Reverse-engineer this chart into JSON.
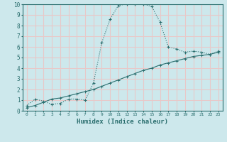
{
  "bg_color": "#cde8ec",
  "grid_color": "#e8c8c8",
  "line_color": "#2a6e6e",
  "xlabel": "Humidex (Indice chaleur)",
  "xlim": [
    -0.5,
    23.5
  ],
  "ylim": [
    0,
    10
  ],
  "xticks": [
    0,
    1,
    2,
    3,
    4,
    5,
    6,
    7,
    8,
    9,
    10,
    11,
    12,
    13,
    14,
    15,
    16,
    17,
    18,
    19,
    20,
    21,
    22,
    23
  ],
  "yticks": [
    0,
    1,
    2,
    3,
    4,
    5,
    6,
    7,
    8,
    9,
    10
  ],
  "curve1_x": [
    0,
    1,
    2,
    3,
    4,
    5,
    6,
    7,
    8,
    9,
    10,
    11,
    12,
    13,
    14,
    15,
    16,
    17,
    18,
    19,
    20,
    21,
    22,
    23
  ],
  "curve1_y": [
    0.5,
    1.1,
    0.9,
    0.6,
    0.7,
    1.1,
    1.1,
    1.0,
    2.6,
    6.4,
    8.6,
    9.9,
    10.0,
    10.0,
    10.0,
    9.8,
    8.3,
    6.0,
    5.8,
    5.5,
    5.6,
    5.5,
    5.3,
    5.6
  ],
  "curve2_x": [
    0,
    1,
    2,
    3,
    4,
    5,
    6,
    7,
    8,
    9,
    10,
    11,
    12,
    13,
    14,
    15,
    16,
    17,
    18,
    19,
    20,
    21,
    22,
    23
  ],
  "curve2_y": [
    0.3,
    0.5,
    0.8,
    1.1,
    1.2,
    1.4,
    1.6,
    1.8,
    2.0,
    2.3,
    2.6,
    2.9,
    3.2,
    3.5,
    3.8,
    4.0,
    4.3,
    4.5,
    4.7,
    4.9,
    5.1,
    5.2,
    5.3,
    5.5
  ]
}
